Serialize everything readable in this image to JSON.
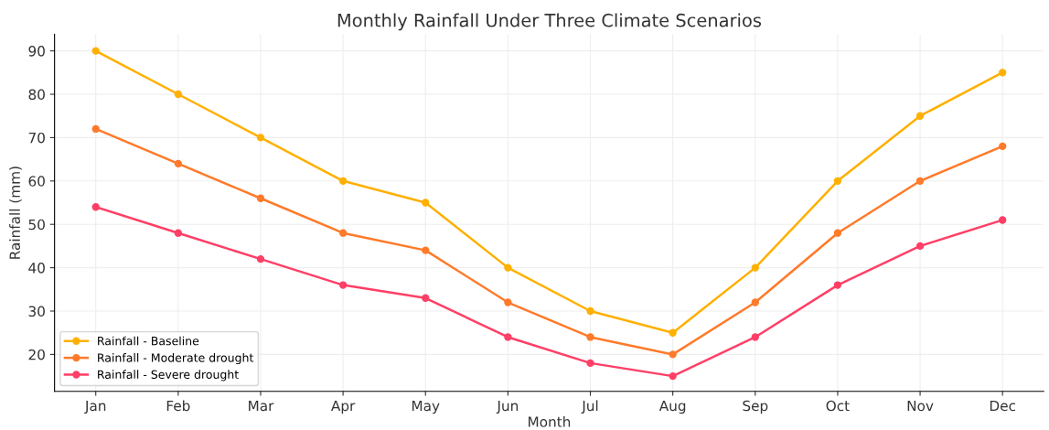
{
  "chart_data": {
    "type": "line",
    "title": "Monthly Rainfall Under Three Climate Scenarios",
    "xlabel": "Month",
    "ylabel": "Rainfall (mm)",
    "categories": [
      "Jan",
      "Feb",
      "Mar",
      "Apr",
      "May",
      "Jun",
      "Jul",
      "Aug",
      "Sep",
      "Oct",
      "Nov",
      "Dec"
    ],
    "series": [
      {
        "name": "Rainfall - Baseline",
        "color": "#ffb000",
        "values": [
          90,
          80,
          70,
          60,
          55,
          40,
          30,
          25,
          40,
          60,
          75,
          85
        ]
      },
      {
        "name": "Rainfall - Moderate drought",
        "color": "#ff7a2a",
        "values": [
          72,
          64,
          56,
          48,
          44,
          32,
          24,
          20,
          32,
          48,
          60,
          68
        ]
      },
      {
        "name": "Rainfall - Severe drought",
        "color": "#ff3f66",
        "values": [
          54,
          48,
          42,
          36,
          33,
          24,
          18,
          15,
          24,
          36,
          45,
          51
        ]
      }
    ],
    "ylim": [
      11.5,
      93.8
    ],
    "yticks": [
      20,
      30,
      40,
      50,
      60,
      70,
      80,
      90
    ],
    "grid": true,
    "legend": "bottom left",
    "marker": "circle",
    "line_style": "solid"
  }
}
